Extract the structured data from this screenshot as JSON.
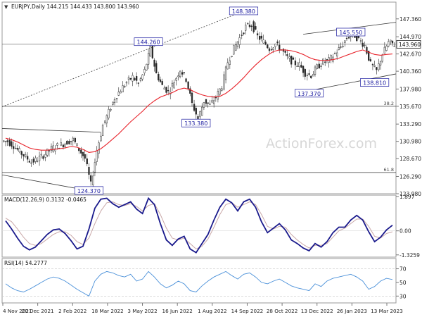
{
  "chart_data": [
    {
      "type": "candlestick",
      "panel": "price",
      "symbol": "EURJPY",
      "interval": "Daily",
      "ohlc": {
        "open": "144.215",
        "high": "144.433",
        "low": "143.800",
        "close": "143.960"
      },
      "ylim": [
        123.98,
        149.6
      ],
      "y_ticks": [
        "147.360",
        "144.970",
        "142.670",
        "140.360",
        "137.980",
        "135.670",
        "133.290",
        "130.980",
        "128.670",
        "126.290",
        "123.980"
      ],
      "last_price": "143.960",
      "fib_levels": [
        {
          "label": "38.2",
          "value": 135.67
        },
        {
          "label": "61.8",
          "value": 126.82
        }
      ],
      "price_labels": [
        {
          "text": "148.380",
          "value": 148.38,
          "date_index": 40
        },
        {
          "text": "145.550",
          "value": 145.55,
          "date_index": 58
        },
        {
          "text": "144.260",
          "value": 144.26,
          "date_index": 24
        },
        {
          "text": "137.370",
          "value": 137.37,
          "date_index": 51
        },
        {
          "text": "138.810",
          "value": 138.81,
          "date_index": 62
        },
        {
          "text": "133.380",
          "value": 133.38,
          "date_index": 32
        },
        {
          "text": "124.370",
          "value": 124.37,
          "date_index": 14
        }
      ],
      "series": [
        {
          "style": "candles",
          "closes": [
            131.0,
            130.4,
            129.6,
            128.9,
            128.2,
            128.6,
            129.1,
            129.8,
            130.3,
            130.5,
            130.9,
            131.2,
            129.9,
            128.7,
            125.2,
            129.8,
            133.1,
            134.9,
            136.8,
            137.9,
            138.9,
            139.6,
            138.7,
            140.4,
            143.4,
            140.0,
            138.4,
            137.6,
            139.0,
            140.6,
            139.3,
            136.0,
            134.0,
            136.4,
            135.8,
            136.9,
            138.4,
            141.6,
            143.4,
            144.8,
            146.3,
            146.6,
            145.0,
            144.3,
            143.4,
            144.0,
            143.2,
            142.2,
            141.5,
            141.2,
            140.1,
            139.8,
            140.9,
            141.6,
            141.8,
            142.7,
            143.6,
            144.8,
            145.4,
            144.6,
            143.8,
            141.3,
            140.4,
            142.7,
            144.2,
            143.96
          ]
        },
        {
          "style": "moving-average",
          "values": [
            131.4,
            131.2,
            130.9,
            130.5,
            130.1,
            129.9,
            129.8,
            129.8,
            129.9,
            130.0,
            130.1,
            130.3,
            130.2,
            129.9,
            129.5,
            129.6,
            130.0,
            130.6,
            131.3,
            132.0,
            132.8,
            133.6,
            134.3,
            135.0,
            135.8,
            136.4,
            136.9,
            137.2,
            137.5,
            137.9,
            138.1,
            137.9,
            137.5,
            137.2,
            137.0,
            136.9,
            137.0,
            137.4,
            138.0,
            138.7,
            139.5,
            140.4,
            141.2,
            141.9,
            142.5,
            143.0,
            143.2,
            143.2,
            143.1,
            142.9,
            142.6,
            142.2,
            141.9,
            141.8,
            141.8,
            141.9,
            142.1,
            142.4,
            142.7,
            143.0,
            143.2,
            142.9,
            142.6,
            142.5,
            142.6,
            142.67
          ]
        }
      ]
    },
    {
      "type": "line",
      "panel": "macd",
      "title": "MACD(12,26,9) 0.3132 -0.0465",
      "ylim": [
        -1.45,
        1.97
      ],
      "y_ticks": [
        "1.897",
        "0.00",
        "-1.3259"
      ],
      "series": [
        {
          "style": "macd",
          "values": [
            0.55,
            0.1,
            -0.4,
            -0.85,
            -1.05,
            -0.9,
            -0.55,
            -0.2,
            0.05,
            0.1,
            -0.15,
            -0.55,
            -1.0,
            -0.85,
            0.1,
            1.25,
            1.75,
            1.8,
            1.5,
            1.3,
            1.45,
            1.6,
            1.2,
            0.95,
            1.8,
            1.45,
            0.4,
            -0.5,
            -0.8,
            -0.45,
            -0.3,
            -1.0,
            -1.2,
            -0.7,
            -0.2,
            0.6,
            1.3,
            1.75,
            1.55,
            1.1,
            1.6,
            1.75,
            1.3,
            0.5,
            -0.1,
            0.15,
            0.4,
            0.05,
            -0.5,
            -0.7,
            -0.95,
            -1.1,
            -0.7,
            -0.9,
            -0.6,
            -0.1,
            0.2,
            0.2,
            0.6,
            0.85,
            0.6,
            -0.05,
            -0.6,
            -0.35,
            0.05,
            0.31
          ]
        },
        {
          "style": "signal",
          "values": [
            0.7,
            0.5,
            0.1,
            -0.35,
            -0.7,
            -0.8,
            -0.7,
            -0.45,
            -0.2,
            -0.05,
            -0.05,
            -0.25,
            -0.6,
            -0.75,
            -0.4,
            0.4,
            1.1,
            1.55,
            1.6,
            1.45,
            1.4,
            1.5,
            1.35,
            1.1,
            1.4,
            1.5,
            0.9,
            0.15,
            -0.4,
            -0.5,
            -0.4,
            -0.7,
            -1.0,
            -0.85,
            -0.45,
            0.2,
            0.9,
            1.45,
            1.55,
            1.3,
            1.45,
            1.6,
            1.45,
            0.9,
            0.25,
            0.1,
            0.25,
            0.2,
            -0.2,
            -0.5,
            -0.75,
            -0.95,
            -0.8,
            -0.8,
            -0.7,
            -0.35,
            0.0,
            0.15,
            0.4,
            0.65,
            0.65,
            0.25,
            -0.3,
            -0.4,
            -0.15,
            -0.05
          ]
        }
      ]
    },
    {
      "type": "line",
      "panel": "rsi",
      "title": "RSI(14) 54.2777",
      "ylim": [
        20,
        85
      ],
      "y_ticks": [
        "70",
        "50",
        "30"
      ],
      "series": [
        {
          "style": "rsi",
          "values": [
            48,
            42,
            38,
            36,
            40,
            45,
            50,
            55,
            58,
            56,
            52,
            46,
            40,
            35,
            30,
            52,
            62,
            66,
            64,
            60,
            58,
            62,
            52,
            55,
            66,
            58,
            48,
            42,
            46,
            52,
            48,
            38,
            36,
            45,
            52,
            58,
            62,
            66,
            60,
            55,
            62,
            64,
            58,
            50,
            48,
            52,
            55,
            50,
            45,
            42,
            40,
            38,
            48,
            44,
            52,
            56,
            58,
            60,
            62,
            58,
            52,
            40,
            44,
            52,
            56,
            54.28
          ]
        }
      ]
    }
  ],
  "x_axis": {
    "labels": [
      "4 Nov 2021",
      "20 Dec 2021",
      "2 Feb 2022",
      "18 Mar 2022",
      "3 May 2022",
      "16 Jun 2022",
      "1 Aug 2022",
      "14 Sep 2022",
      "28 Oct 2022",
      "13 Dec 2022",
      "26 Jan 2023",
      "13 Mar 2023"
    ]
  },
  "watermark": "ActionForex.com",
  "colors": {
    "candle": "#2a2a2a",
    "moving_average": "#e8232b",
    "macd": "#1a1a8c",
    "signal": "#c9a8a8",
    "rsi": "#4a90d9",
    "label_text": "#1a1aa0",
    "grid": "#d9d9d9",
    "watermark": "#d7d7d7"
  }
}
